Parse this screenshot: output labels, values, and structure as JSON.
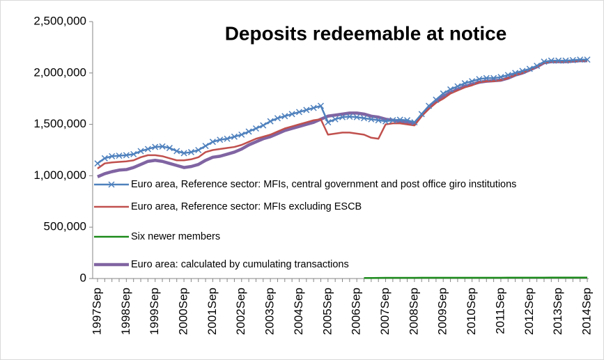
{
  "chart_data": {
    "type": "line",
    "title": "Deposits redeemable at notice",
    "categories": [
      "1997Sep",
      null,
      null,
      null,
      "1998Sep",
      null,
      null,
      null,
      "1999Sep",
      null,
      null,
      null,
      "2000Sep",
      null,
      null,
      null,
      "2001Sep",
      null,
      null,
      null,
      "2002Sep",
      null,
      null,
      null,
      "2003Sep",
      null,
      null,
      null,
      "2004Sep",
      null,
      null,
      null,
      "2005Sep",
      null,
      null,
      null,
      "2006Sep",
      null,
      null,
      null,
      "2007Sep",
      null,
      null,
      null,
      "2008Sep",
      null,
      null,
      null,
      "2009Sep",
      null,
      null,
      null,
      "2010Sep",
      null,
      null,
      null,
      "2011Sep",
      null,
      null,
      null,
      "2012Sep",
      null,
      null,
      null,
      "2013Sep",
      null,
      null,
      null,
      "2014Sep"
    ],
    "series": [
      {
        "name": "Euro area, Reference sector: MFIs, central government and post office giro institutions",
        "color": "#4f81bd",
        "marker": "x",
        "values": [
          1120000,
          1170000,
          1190000,
          1195000,
          1200000,
          1210000,
          1240000,
          1260000,
          1280000,
          1285000,
          1270000,
          1240000,
          1220000,
          1230000,
          1250000,
          1290000,
          1330000,
          1350000,
          1360000,
          1380000,
          1400000,
          1430000,
          1460000,
          1490000,
          1530000,
          1560000,
          1580000,
          1600000,
          1620000,
          1640000,
          1660000,
          1680000,
          1520000,
          1550000,
          1570000,
          1575000,
          1570000,
          1560000,
          1550000,
          1540000,
          1530000,
          1540000,
          1545000,
          1540000,
          1520000,
          1600000,
          1680000,
          1740000,
          1800000,
          1840000,
          1870000,
          1900000,
          1920000,
          1940000,
          1950000,
          1950000,
          1960000,
          1980000,
          2000000,
          2020000,
          2040000,
          2070000,
          2110000,
          2120000,
          2120000,
          2120000,
          2125000,
          2130000,
          2130000
        ]
      },
      {
        "name": "Euro area, Reference sector: MFIs excluding ESCB",
        "color": "#c0504d",
        "values": [
          1070000,
          1120000,
          1130000,
          1135000,
          1140000,
          1150000,
          1180000,
          1200000,
          1200000,
          1190000,
          1170000,
          1150000,
          1150000,
          1160000,
          1180000,
          1230000,
          1250000,
          1260000,
          1270000,
          1280000,
          1300000,
          1330000,
          1360000,
          1380000,
          1400000,
          1430000,
          1460000,
          1480000,
          1500000,
          1520000,
          1540000,
          1550000,
          1400000,
          1410000,
          1420000,
          1420000,
          1410000,
          1400000,
          1370000,
          1360000,
          1500000,
          1510000,
          1510000,
          1500000,
          1490000,
          1580000,
          1650000,
          1710000,
          1750000,
          1800000,
          1830000,
          1860000,
          1880000,
          1910000,
          1920000,
          1920000,
          1930000,
          1950000,
          1980000,
          2000000,
          2030000,
          2060000,
          2100000,
          2110000,
          2110000,
          2110000,
          2115000,
          2120000,
          2120000
        ]
      },
      {
        "name": "Six newer members",
        "color": "#1a8a1a",
        "values": [
          null,
          null,
          null,
          null,
          null,
          null,
          null,
          null,
          null,
          null,
          null,
          null,
          null,
          null,
          null,
          null,
          null,
          null,
          null,
          null,
          null,
          null,
          null,
          null,
          null,
          null,
          null,
          null,
          null,
          null,
          null,
          null,
          null,
          null,
          null,
          null,
          null,
          5000,
          5500,
          6000,
          6500,
          7000,
          7000,
          7000,
          7000,
          7500,
          7500,
          7500,
          7500,
          8000,
          8000,
          8000,
          8000,
          8000,
          8000,
          8000,
          8000,
          8500,
          8500,
          8500,
          8500,
          8500,
          8500,
          9000,
          9000,
          9000,
          9000,
          9000,
          9000
        ]
      },
      {
        "name": "Euro area: calculated by cumulating transactions",
        "color": "#8064a2",
        "values": [
          990000,
          1020000,
          1040000,
          1055000,
          1060000,
          1080000,
          1110000,
          1140000,
          1150000,
          1140000,
          1120000,
          1100000,
          1080000,
          1090000,
          1110000,
          1150000,
          1180000,
          1190000,
          1210000,
          1230000,
          1260000,
          1300000,
          1330000,
          1360000,
          1380000,
          1410000,
          1440000,
          1460000,
          1480000,
          1500000,
          1520000,
          1550000,
          1580000,
          1590000,
          1600000,
          1610000,
          1610000,
          1600000,
          1580000,
          1570000,
          1550000,
          1540000,
          1530000,
          1520000,
          1500000,
          1590000,
          1660000,
          1720000,
          1770000,
          1810000,
          1840000,
          1870000,
          1890000,
          1910000,
          1920000,
          1925000,
          1930000,
          1950000,
          1980000,
          2000000,
          2030000,
          2060000,
          2100000,
          2110000,
          2110000,
          2110000,
          2115000,
          2120000,
          2120000
        ]
      }
    ],
    "ylim": [
      0,
      2500000
    ],
    "yticks": [
      0,
      {
        "value": 500000,
        "label": "500,000"
      },
      {
        "value": 1000000,
        "label": "1,000,000"
      },
      {
        "value": 1500000,
        "label": "1,500,000"
      },
      {
        "value": 2000000,
        "label": "2,000,000"
      },
      {
        "value": 2500000,
        "label": "2,500,000"
      }
    ],
    "grid": false,
    "legend": "left"
  }
}
